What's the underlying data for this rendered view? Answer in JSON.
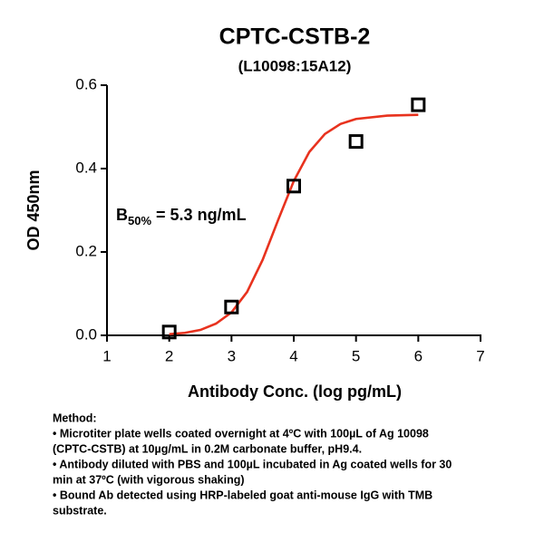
{
  "chart_data": {
    "type": "scatter",
    "title": "CPTC-CSTB-2",
    "subtitle": "(L10098:15A12)",
    "x_label": "Antibody Conc. (log pg/mL)",
    "y_label": "OD 450nm",
    "annotation": [
      "B",
      "50%",
      " = 5.3 ng/mL"
    ],
    "xlim": [
      1,
      7
    ],
    "xticks": [
      1,
      2,
      3,
      4,
      5,
      6,
      7
    ],
    "ylim": [
      0,
      0.6
    ],
    "yticks": [
      {
        "value": 0,
        "label": "0.0"
      },
      0.2,
      0.4,
      0.6
    ],
    "grid": false,
    "series": [
      {
        "marker": "square",
        "color": "#000000",
        "x": [
          2,
          3,
          4,
          5,
          6
        ],
        "values": [
          0.008,
          0.068,
          0.358,
          0.465,
          0.553
        ]
      },
      {
        "marker": "line",
        "color": "#e8321e",
        "x": [
          2,
          2.25,
          2.5,
          2.75,
          3,
          3.25,
          3.5,
          3.75,
          4,
          4.25,
          4.5,
          4.75,
          5,
          5.5,
          6
        ],
        "values": [
          0.003,
          0.006,
          0.013,
          0.028,
          0.055,
          0.104,
          0.181,
          0.277,
          0.37,
          0.44,
          0.483,
          0.507,
          0.519,
          0.527,
          0.529
        ]
      }
    ],
    "notes": [
      "Method:",
      "• Microtiter plate wells coated overnight at 4ºC  with 100µL of Ag 10098",
      "(CPTC-CSTB) at 10µg/mL in 0.2M carbonate buffer, pH9.4.",
      "• Antibody diluted with PBS and 100µL incubated in Ag coated wells for 30",
      "min at 37ºC (with vigorous shaking)",
      "• Bound Ab detected using HRP-labeled goat anti-mouse IgG with TMB",
      "substrate."
    ]
  }
}
